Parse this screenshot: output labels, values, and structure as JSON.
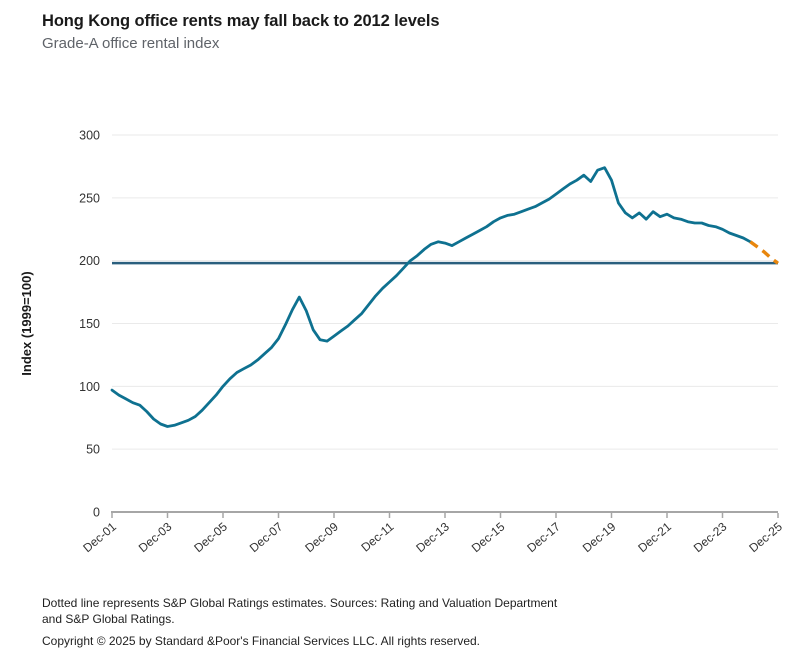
{
  "header": {
    "title": "Hong Kong office rents may fall back to 2012 levels",
    "subtitle": "Grade-A office rental index"
  },
  "footer": {
    "note_line1": "Dotted line represents S&P Global Ratings estimates. Sources: Rating and Valuation Department",
    "note_line2": "and S&P Global Ratings.",
    "copyright": "Copyright © 2025 by Standard &Poor's Financial Services LLC. All rights reserved."
  },
  "chart_data": {
    "type": "line",
    "title": "Hong Kong office rents may fall back to 2012 levels",
    "subtitle": "Grade-A office rental index",
    "xlabel": "",
    "ylabel": "Index (1999=100)",
    "xlim": [
      0,
      24
    ],
    "ylim": [
      0,
      300
    ],
    "grid": "horizontal",
    "legend": "none",
    "colors": {
      "grid": "#eaeaea",
      "axis": "#a6a6a6",
      "title": "#1a1a1a",
      "subtitle": "#5f6369",
      "tick_text": "#333333"
    },
    "y_ticks": [
      0,
      50,
      100,
      150,
      200,
      250,
      300
    ],
    "x_ticks": [
      {
        "x": 0,
        "label": "Dec-01"
      },
      {
        "x": 2,
        "label": "Dec-03"
      },
      {
        "x": 4,
        "label": "Dec-05"
      },
      {
        "x": 6,
        "label": "Dec-07"
      },
      {
        "x": 8,
        "label": "Dec-09"
      },
      {
        "x": 10,
        "label": "Dec-11"
      },
      {
        "x": 12,
        "label": "Dec-13"
      },
      {
        "x": 14,
        "label": "Dec-15"
      },
      {
        "x": 16,
        "label": "Dec-17"
      },
      {
        "x": 18,
        "label": "Dec-19"
      },
      {
        "x": 20,
        "label": "Dec-21"
      },
      {
        "x": 22,
        "label": "Dec-23"
      },
      {
        "x": 24,
        "label": "Dec-25"
      }
    ],
    "reference_line": {
      "value": 198,
      "color": "#2a5f7e",
      "meaning": "2012 level"
    },
    "series": [
      {
        "name": "Grade-A office rental index (actual)",
        "color": "#0e7190",
        "style": "solid",
        "width": 2.8,
        "points": [
          [
            0,
            97
          ],
          [
            0.25,
            93
          ],
          [
            0.5,
            90
          ],
          [
            0.75,
            87
          ],
          [
            1,
            85
          ],
          [
            1.25,
            80
          ],
          [
            1.5,
            74
          ],
          [
            1.75,
            70
          ],
          [
            2,
            68
          ],
          [
            2.25,
            69
          ],
          [
            2.5,
            71
          ],
          [
            2.75,
            73
          ],
          [
            3,
            76
          ],
          [
            3.25,
            81
          ],
          [
            3.5,
            87
          ],
          [
            3.75,
            93
          ],
          [
            4,
            100
          ],
          [
            4.25,
            106
          ],
          [
            4.5,
            111
          ],
          [
            4.75,
            114
          ],
          [
            5,
            117
          ],
          [
            5.25,
            121
          ],
          [
            5.5,
            126
          ],
          [
            5.75,
            131
          ],
          [
            6,
            138
          ],
          [
            6.25,
            149
          ],
          [
            6.5,
            161
          ],
          [
            6.75,
            171
          ],
          [
            7,
            160
          ],
          [
            7.25,
            145
          ],
          [
            7.5,
            137
          ],
          [
            7.75,
            136
          ],
          [
            8,
            140
          ],
          [
            8.25,
            144
          ],
          [
            8.5,
            148
          ],
          [
            8.75,
            153
          ],
          [
            9,
            158
          ],
          [
            9.25,
            165
          ],
          [
            9.5,
            172
          ],
          [
            9.75,
            178
          ],
          [
            10,
            183
          ],
          [
            10.25,
            188
          ],
          [
            10.5,
            194
          ],
          [
            10.75,
            200
          ],
          [
            11,
            204
          ],
          [
            11.25,
            209
          ],
          [
            11.5,
            213
          ],
          [
            11.75,
            215
          ],
          [
            12,
            214
          ],
          [
            12.25,
            212
          ],
          [
            12.5,
            215
          ],
          [
            12.75,
            218
          ],
          [
            13,
            221
          ],
          [
            13.25,
            224
          ],
          [
            13.5,
            227
          ],
          [
            13.75,
            231
          ],
          [
            14,
            234
          ],
          [
            14.25,
            236
          ],
          [
            14.5,
            237
          ],
          [
            14.75,
            239
          ],
          [
            15,
            241
          ],
          [
            15.25,
            243
          ],
          [
            15.5,
            246
          ],
          [
            15.75,
            249
          ],
          [
            16,
            253
          ],
          [
            16.25,
            257
          ],
          [
            16.5,
            261
          ],
          [
            16.75,
            264
          ],
          [
            17,
            268
          ],
          [
            17.25,
            263
          ],
          [
            17.5,
            272
          ],
          [
            17.75,
            274
          ],
          [
            18,
            264
          ],
          [
            18.25,
            246
          ],
          [
            18.5,
            238
          ],
          [
            18.75,
            234
          ],
          [
            19,
            238
          ],
          [
            19.25,
            233
          ],
          [
            19.5,
            239
          ],
          [
            19.75,
            235
          ],
          [
            20,
            237
          ],
          [
            20.25,
            234
          ],
          [
            20.5,
            233
          ],
          [
            20.75,
            231
          ],
          [
            21,
            230
          ],
          [
            21.25,
            230
          ],
          [
            21.5,
            228
          ],
          [
            21.75,
            227
          ],
          [
            22,
            225
          ],
          [
            22.25,
            222
          ],
          [
            22.5,
            220
          ],
          [
            22.75,
            218
          ],
          [
            23,
            215
          ]
        ]
      },
      {
        "name": "S&P Global Ratings estimate",
        "color": "#e8860d",
        "style": "dashed",
        "width": 3.4,
        "points": [
          [
            23,
            215
          ],
          [
            23.25,
            211
          ],
          [
            23.5,
            207
          ],
          [
            23.75,
            202
          ],
          [
            24,
            198
          ]
        ]
      }
    ]
  }
}
